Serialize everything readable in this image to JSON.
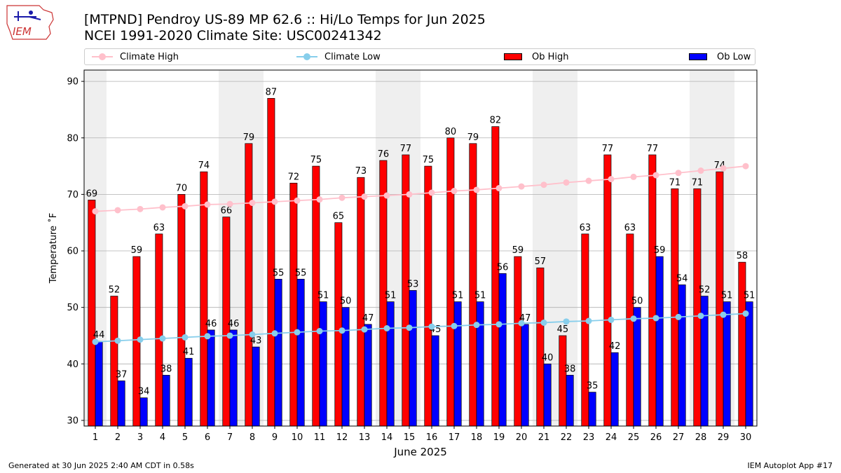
{
  "header": {
    "title_line1": "[MTPND] Pendroy US-89 MP 62.6  :: Hi/Lo Temps for Jun 2025",
    "title_line2": "NCEI 1991-2020 Climate Site: USC00241342",
    "logo_text": "IEM"
  },
  "legend": {
    "climate_high": "Climate High",
    "climate_low": "Climate Low",
    "ob_high": "Ob High",
    "ob_low": "Ob Low"
  },
  "footer": {
    "left": "Generated at 30 Jun 2025 2:40 AM CDT in 0.58s",
    "right": "IEM Autoplot App #17"
  },
  "chart_data": {
    "type": "bar",
    "title": "[MTPND] Pendroy US-89 MP 62.6  :: Hi/Lo Temps for Jun 2025",
    "subtitle": "NCEI 1991-2020 Climate Site: USC00241342",
    "xlabel": "June 2025",
    "ylabel": "Temperature ˚F",
    "ylim": [
      29,
      92
    ],
    "yticks": [
      30,
      40,
      50,
      60,
      70,
      80,
      90
    ],
    "grid": true,
    "legend_position": "top",
    "weekend_shading": [
      [
        1,
        1
      ],
      [
        7,
        8
      ],
      [
        14,
        15
      ],
      [
        21,
        22
      ],
      [
        28,
        29
      ]
    ],
    "categories": [
      1,
      2,
      3,
      4,
      5,
      6,
      7,
      8,
      9,
      10,
      11,
      12,
      13,
      14,
      15,
      16,
      17,
      18,
      19,
      20,
      21,
      22,
      23,
      24,
      25,
      26,
      27,
      28,
      29,
      30
    ],
    "series": [
      {
        "name": "Ob High",
        "kind": "bar",
        "color": "#ff0000",
        "values": [
          69,
          52,
          59,
          63,
          70,
          74,
          66,
          79,
          87,
          72,
          75,
          65,
          73,
          76,
          77,
          75,
          80,
          79,
          82,
          59,
          57,
          45,
          63,
          77,
          63,
          77,
          71,
          71,
          74,
          58
        ]
      },
      {
        "name": "Ob Low",
        "kind": "bar",
        "color": "#0000ff",
        "values": [
          44,
          37,
          34,
          38,
          41,
          46,
          46,
          43,
          55,
          55,
          51,
          50,
          47,
          51,
          53,
          45,
          51,
          51,
          56,
          47,
          40,
          38,
          35,
          42,
          50,
          59,
          54,
          52,
          51,
          51
        ]
      },
      {
        "name": "Climate High",
        "kind": "line",
        "color": "#ffc0cb",
        "values": [
          67.0,
          67.2,
          67.4,
          67.7,
          67.9,
          68.2,
          68.3,
          68.5,
          68.7,
          68.9,
          69.1,
          69.4,
          69.6,
          69.8,
          70.0,
          70.3,
          70.6,
          70.8,
          71.1,
          71.4,
          71.7,
          72.1,
          72.4,
          72.7,
          73.1,
          73.4,
          73.8,
          74.2,
          74.6,
          75.0
        ]
      },
      {
        "name": "Climate Low",
        "kind": "line",
        "color": "#87ceeb",
        "values": [
          43.9,
          44.1,
          44.3,
          44.5,
          44.7,
          44.9,
          45.0,
          45.2,
          45.4,
          45.6,
          45.8,
          45.9,
          46.1,
          46.3,
          46.4,
          46.6,
          46.7,
          46.9,
          47.0,
          47.2,
          47.3,
          47.5,
          47.6,
          47.8,
          48.0,
          48.1,
          48.3,
          48.5,
          48.7,
          48.9
        ]
      }
    ]
  }
}
